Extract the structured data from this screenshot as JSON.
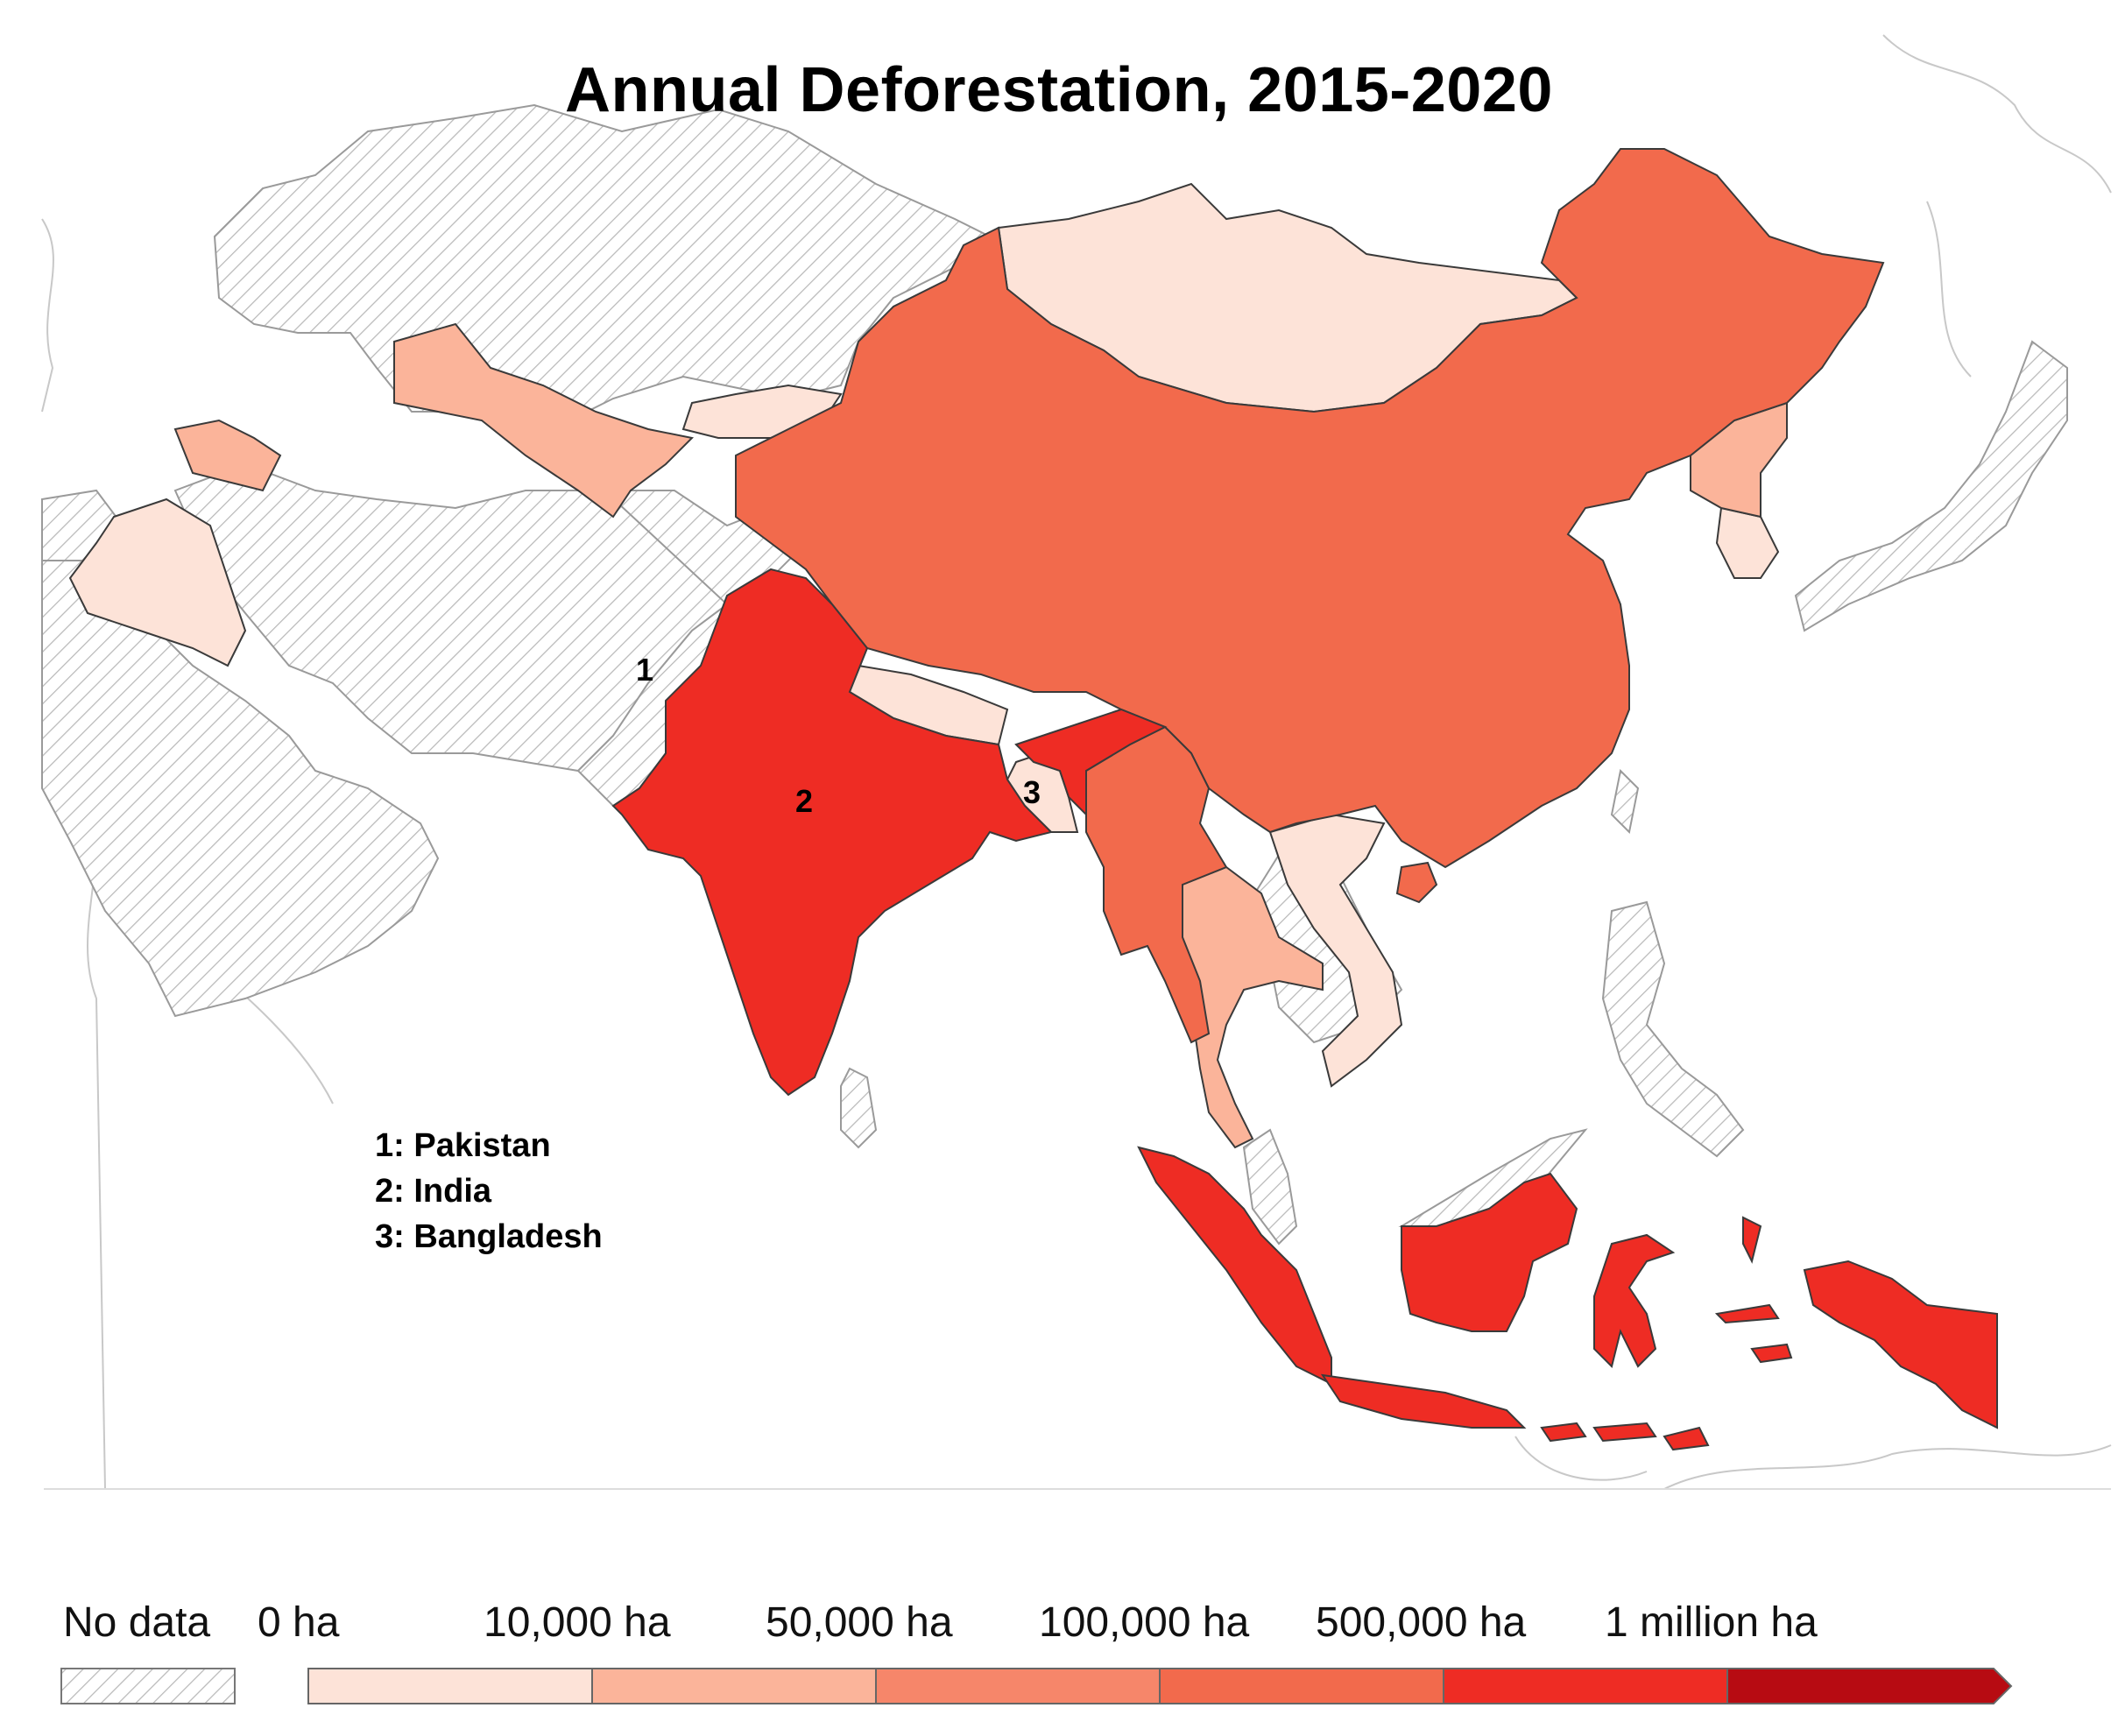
{
  "title": "Annual Deforestation, 2015-2020",
  "map_labels": {
    "pakistan_number": "1",
    "india_number": "2",
    "bangladesh_number": "3"
  },
  "key": {
    "items": [
      "1: Pakistan",
      "2: India",
      "3: Bangladesh"
    ]
  },
  "legend": {
    "no_data_label": "No data",
    "zero_label": "0 ha",
    "thresholds": [
      "10,000 ha",
      "50,000 ha",
      "100,000 ha",
      "500,000 ha",
      "1 million ha"
    ],
    "bins": [
      {
        "color": "#fde3d8"
      },
      {
        "color": "#fbb49a"
      },
      {
        "color": "#f6866a"
      },
      {
        "color": "#f26a4c"
      },
      {
        "color": "#ee2c24"
      },
      {
        "color": "#b70b12"
      }
    ]
  },
  "colors": {
    "no_data_hatch": "#b9b9b9",
    "border": "#3a3a3a",
    "lightest": "#fde3d8",
    "light": "#fbb49a",
    "medium": "#f26a4c",
    "high": "#ee2c24"
  },
  "regions": [
    {
      "name": "Russia",
      "class": "no-data"
    },
    {
      "name": "Kazakhstan",
      "class": "no-data"
    },
    {
      "name": "Pakistan",
      "class": "no-data"
    },
    {
      "name": "Iran",
      "class": "no-data"
    },
    {
      "name": "Saudi Arabia",
      "class": "no-data"
    },
    {
      "name": "Japan",
      "class": "no-data"
    },
    {
      "name": "Philippines",
      "class": "no-data"
    },
    {
      "name": "Mongolia",
      "class": "0-10,000 ha"
    },
    {
      "name": "Iraq",
      "class": "0-10,000 ha"
    },
    {
      "name": "Kyrgyzstan",
      "class": "0-10,000 ha"
    },
    {
      "name": "Nepal",
      "class": "0-10,000 ha"
    },
    {
      "name": "Bangladesh",
      "class": "0-10,000 ha"
    },
    {
      "name": "Vietnam",
      "class": "0-10,000 ha"
    },
    {
      "name": "South Korea",
      "class": "0-10,000 ha"
    },
    {
      "name": "Uzbekistan",
      "class": "10,000-50,000 ha"
    },
    {
      "name": "Azerbaijan",
      "class": "10,000-50,000 ha"
    },
    {
      "name": "Thailand",
      "class": "10,000-50,000 ha"
    },
    {
      "name": "North Korea",
      "class": "10,000-50,000 ha"
    },
    {
      "name": "China",
      "class": "100,000-500,000 ha"
    },
    {
      "name": "Myanmar",
      "class": "100,000-500,000 ha"
    },
    {
      "name": "India",
      "class": "500,000 ha-1 million ha"
    },
    {
      "name": "Indonesia",
      "class": "500,000 ha-1 million ha"
    }
  ]
}
